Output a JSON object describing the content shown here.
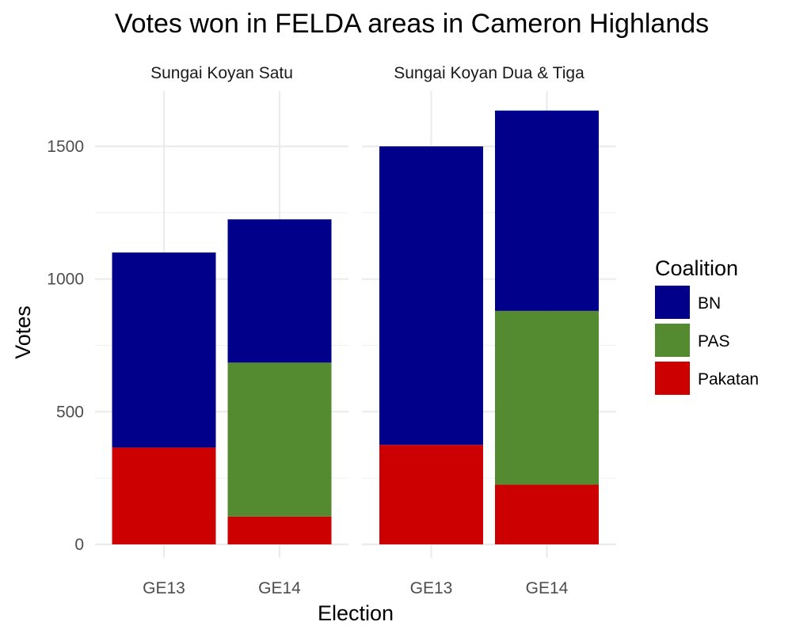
{
  "chart_data": {
    "type": "bar",
    "stacked": true,
    "title": "Votes won in FELDA areas in Cameron Highlands",
    "xlabel": "Election",
    "ylabel": "Votes",
    "ylim": [
      0,
      1700
    ],
    "yticks": [
      0,
      500,
      1000,
      1500
    ],
    "grid": true,
    "legend": {
      "title": "Coalition",
      "position": "right",
      "entries": [
        {
          "name": "BN",
          "color": "#00008B"
        },
        {
          "name": "PAS",
          "color": "#548B30"
        },
        {
          "name": "Pakatan",
          "color": "#CC0000"
        }
      ]
    },
    "categories": [
      "GE13",
      "GE14"
    ],
    "facets": [
      {
        "label": "Sungai Koyan Satu",
        "series": [
          {
            "name": "Pakatan",
            "values": [
              365,
              105
            ]
          },
          {
            "name": "PAS",
            "values": [
              0,
              580
            ]
          },
          {
            "name": "BN",
            "values": [
              735,
              540
            ]
          }
        ]
      },
      {
        "label": "Sungai Koyan Dua & Tiga",
        "series": [
          {
            "name": "Pakatan",
            "values": [
              375,
              225
            ]
          },
          {
            "name": "PAS",
            "values": [
              0,
              655
            ]
          },
          {
            "name": "BN",
            "values": [
              1125,
              755
            ]
          }
        ]
      }
    ]
  }
}
